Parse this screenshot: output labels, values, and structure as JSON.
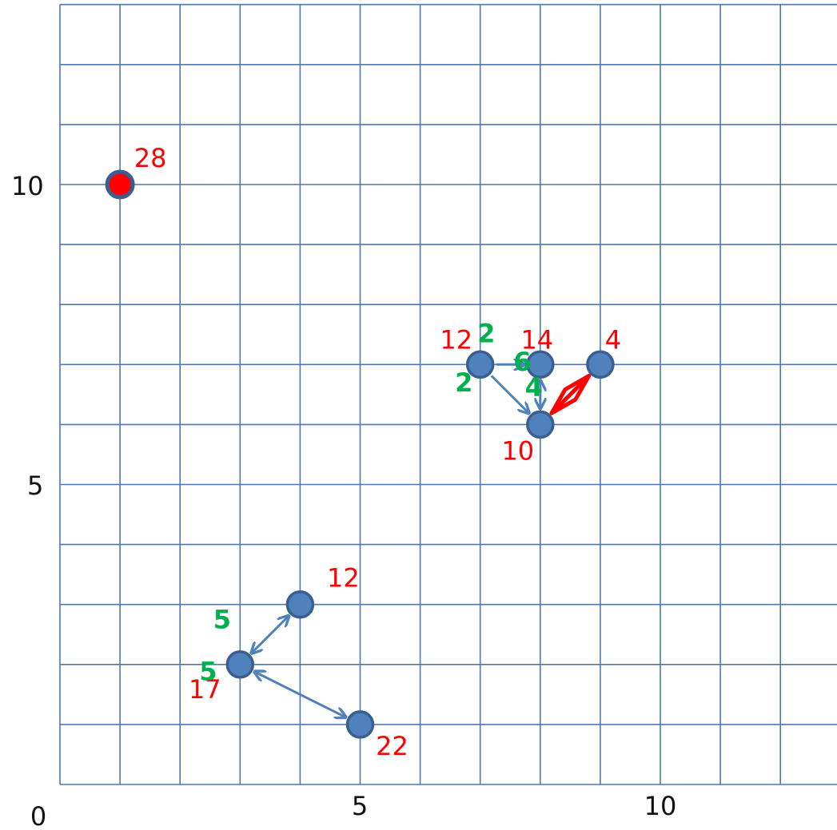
{
  "colors": {
    "grid": "#4f77b4",
    "node_fill": "#4f81bd",
    "node_stroke": "#3a5f8f",
    "arrow": "#4f81bd",
    "value_label": "#ff0000",
    "weight_label": "#00b050",
    "highlight": "#ff0000"
  },
  "axes": {
    "x_ticks": [
      "0",
      "5",
      "10"
    ],
    "y_ticks": [
      "5",
      "10"
    ],
    "x_range": [
      0,
      13
    ],
    "y_range": [
      0,
      13
    ]
  },
  "nodes": [
    {
      "id": "n28",
      "x": 1,
      "y": 10,
      "label": "28",
      "highlight": true
    },
    {
      "id": "n12a",
      "x": 7,
      "y": 7,
      "label": "12"
    },
    {
      "id": "n14",
      "x": 8,
      "y": 7,
      "label": "14"
    },
    {
      "id": "n4",
      "x": 9,
      "y": 7,
      "label": "4"
    },
    {
      "id": "n10",
      "x": 8,
      "y": 6,
      "label": "10"
    },
    {
      "id": "n12b",
      "x": 4,
      "y": 3,
      "label": "12"
    },
    {
      "id": "n17",
      "x": 3,
      "y": 2,
      "label": "17"
    },
    {
      "id": "n22",
      "x": 5,
      "y": 1,
      "label": "22"
    }
  ],
  "edges": [
    {
      "from": "n12a",
      "to": "n14",
      "weight": "2",
      "bidirectional": false
    },
    {
      "from": "n12a",
      "to": "n10",
      "weight": "2",
      "bidirectional": false
    },
    {
      "from": "n14",
      "to": "n10",
      "weight": "4",
      "bidirectional": true
    },
    {
      "from": "n4",
      "to": "n10",
      "weight": "6",
      "bidirectional": true,
      "highlight": true
    },
    {
      "from": "n17",
      "to": "n12b",
      "weight": "5",
      "bidirectional": true
    },
    {
      "from": "n17",
      "to": "n22",
      "weight": "5",
      "bidirectional": true
    }
  ]
}
